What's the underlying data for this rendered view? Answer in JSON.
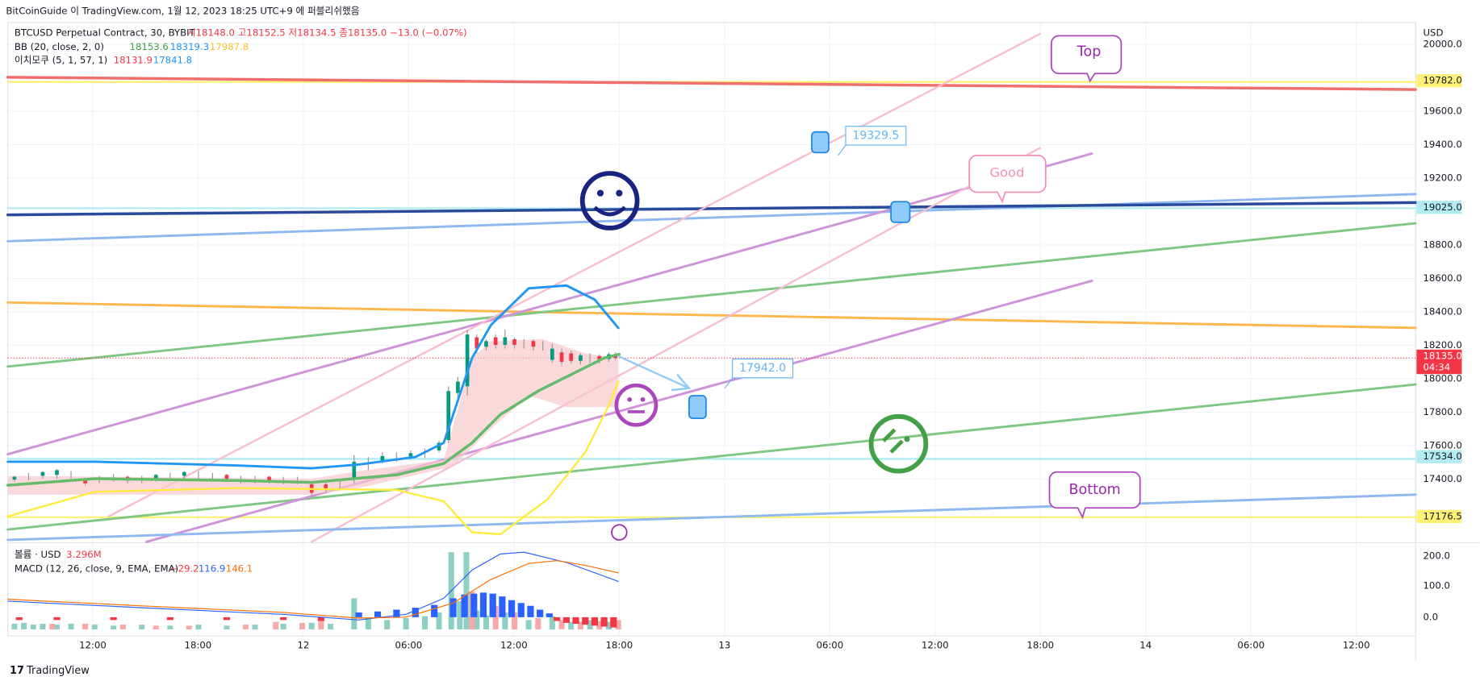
{
  "header": {
    "title": "BitCoinGuide 이 TradingView.com, 1월 12, 2023 18:25 UTC+9 에 퍼블리쉬했음"
  },
  "legend": {
    "symbol": "BTCUSD Perpetual Contract, 30, BYBIT",
    "ohlc": "시18148.0 고18152.5 저18134.5 종18135.0 −13.0 (−0.07%)",
    "bb": {
      "name": "BB (20, close, 2, 0)",
      "basis": "18153.6",
      "upper": "18319.3",
      "lower": "17987.8"
    },
    "ichimoku": {
      "name": "이치모쿠 (5, 1, 57, 1)",
      "a": "18131.9",
      "b": "17841.8"
    }
  },
  "price_axis": {
    "unit": "USD",
    "ticks": [
      {
        "value": 20000,
        "label": "20000.0"
      },
      {
        "value": 19600,
        "label": "19600.0"
      },
      {
        "value": 19400,
        "label": "19400.0"
      },
      {
        "value": 19200,
        "label": "19200.0"
      },
      {
        "value": 18800,
        "label": "18800.0"
      },
      {
        "value": 18600,
        "label": "18600.0"
      },
      {
        "value": 18400,
        "label": "18400.0"
      },
      {
        "value": 18200,
        "label": "18200.0"
      },
      {
        "value": 18000,
        "label": "18000.0"
      },
      {
        "value": 17800,
        "label": "17800.0"
      },
      {
        "value": 17600,
        "label": "17600.0"
      },
      {
        "value": 17400,
        "label": "17400.0"
      }
    ],
    "badges": [
      {
        "value": 19782,
        "label": "19782.0",
        "color": "#fff176"
      },
      {
        "value": 19025,
        "label": "19025.0",
        "color": "#b2ebf2"
      },
      {
        "value": 18135,
        "label": "18135.0",
        "color": "#f23645",
        "sub": "04:34"
      },
      {
        "value": 17534,
        "label": "17534.0",
        "color": "#b2ebf2"
      },
      {
        "value": 17176.5,
        "label": "17176.5",
        "color": "#fff176"
      }
    ]
  },
  "annotations": {
    "top": "Top",
    "good": "Good",
    "bottom": "Bottom",
    "target_high": "19329.5",
    "target_low": "17942.0"
  },
  "lower_pane": {
    "volume": {
      "name": "볼륨 · USD",
      "value": "3.296M"
    },
    "macd": {
      "name": "MACD (12, 26, close, 9, EMA, EMA)",
      "hist": "−29.2",
      "macd": "116.9",
      "signal": "146.1"
    },
    "ticks": [
      "200.0",
      "100.0",
      "0.0"
    ]
  },
  "time_axis": [
    "12:00",
    "18:00",
    "12",
    "06:00",
    "12:00",
    "18:00",
    "13",
    "06:00",
    "12:00",
    "18:00",
    "14",
    "06:00",
    "12:00"
  ],
  "footer": {
    "brand": "TradingView"
  }
}
